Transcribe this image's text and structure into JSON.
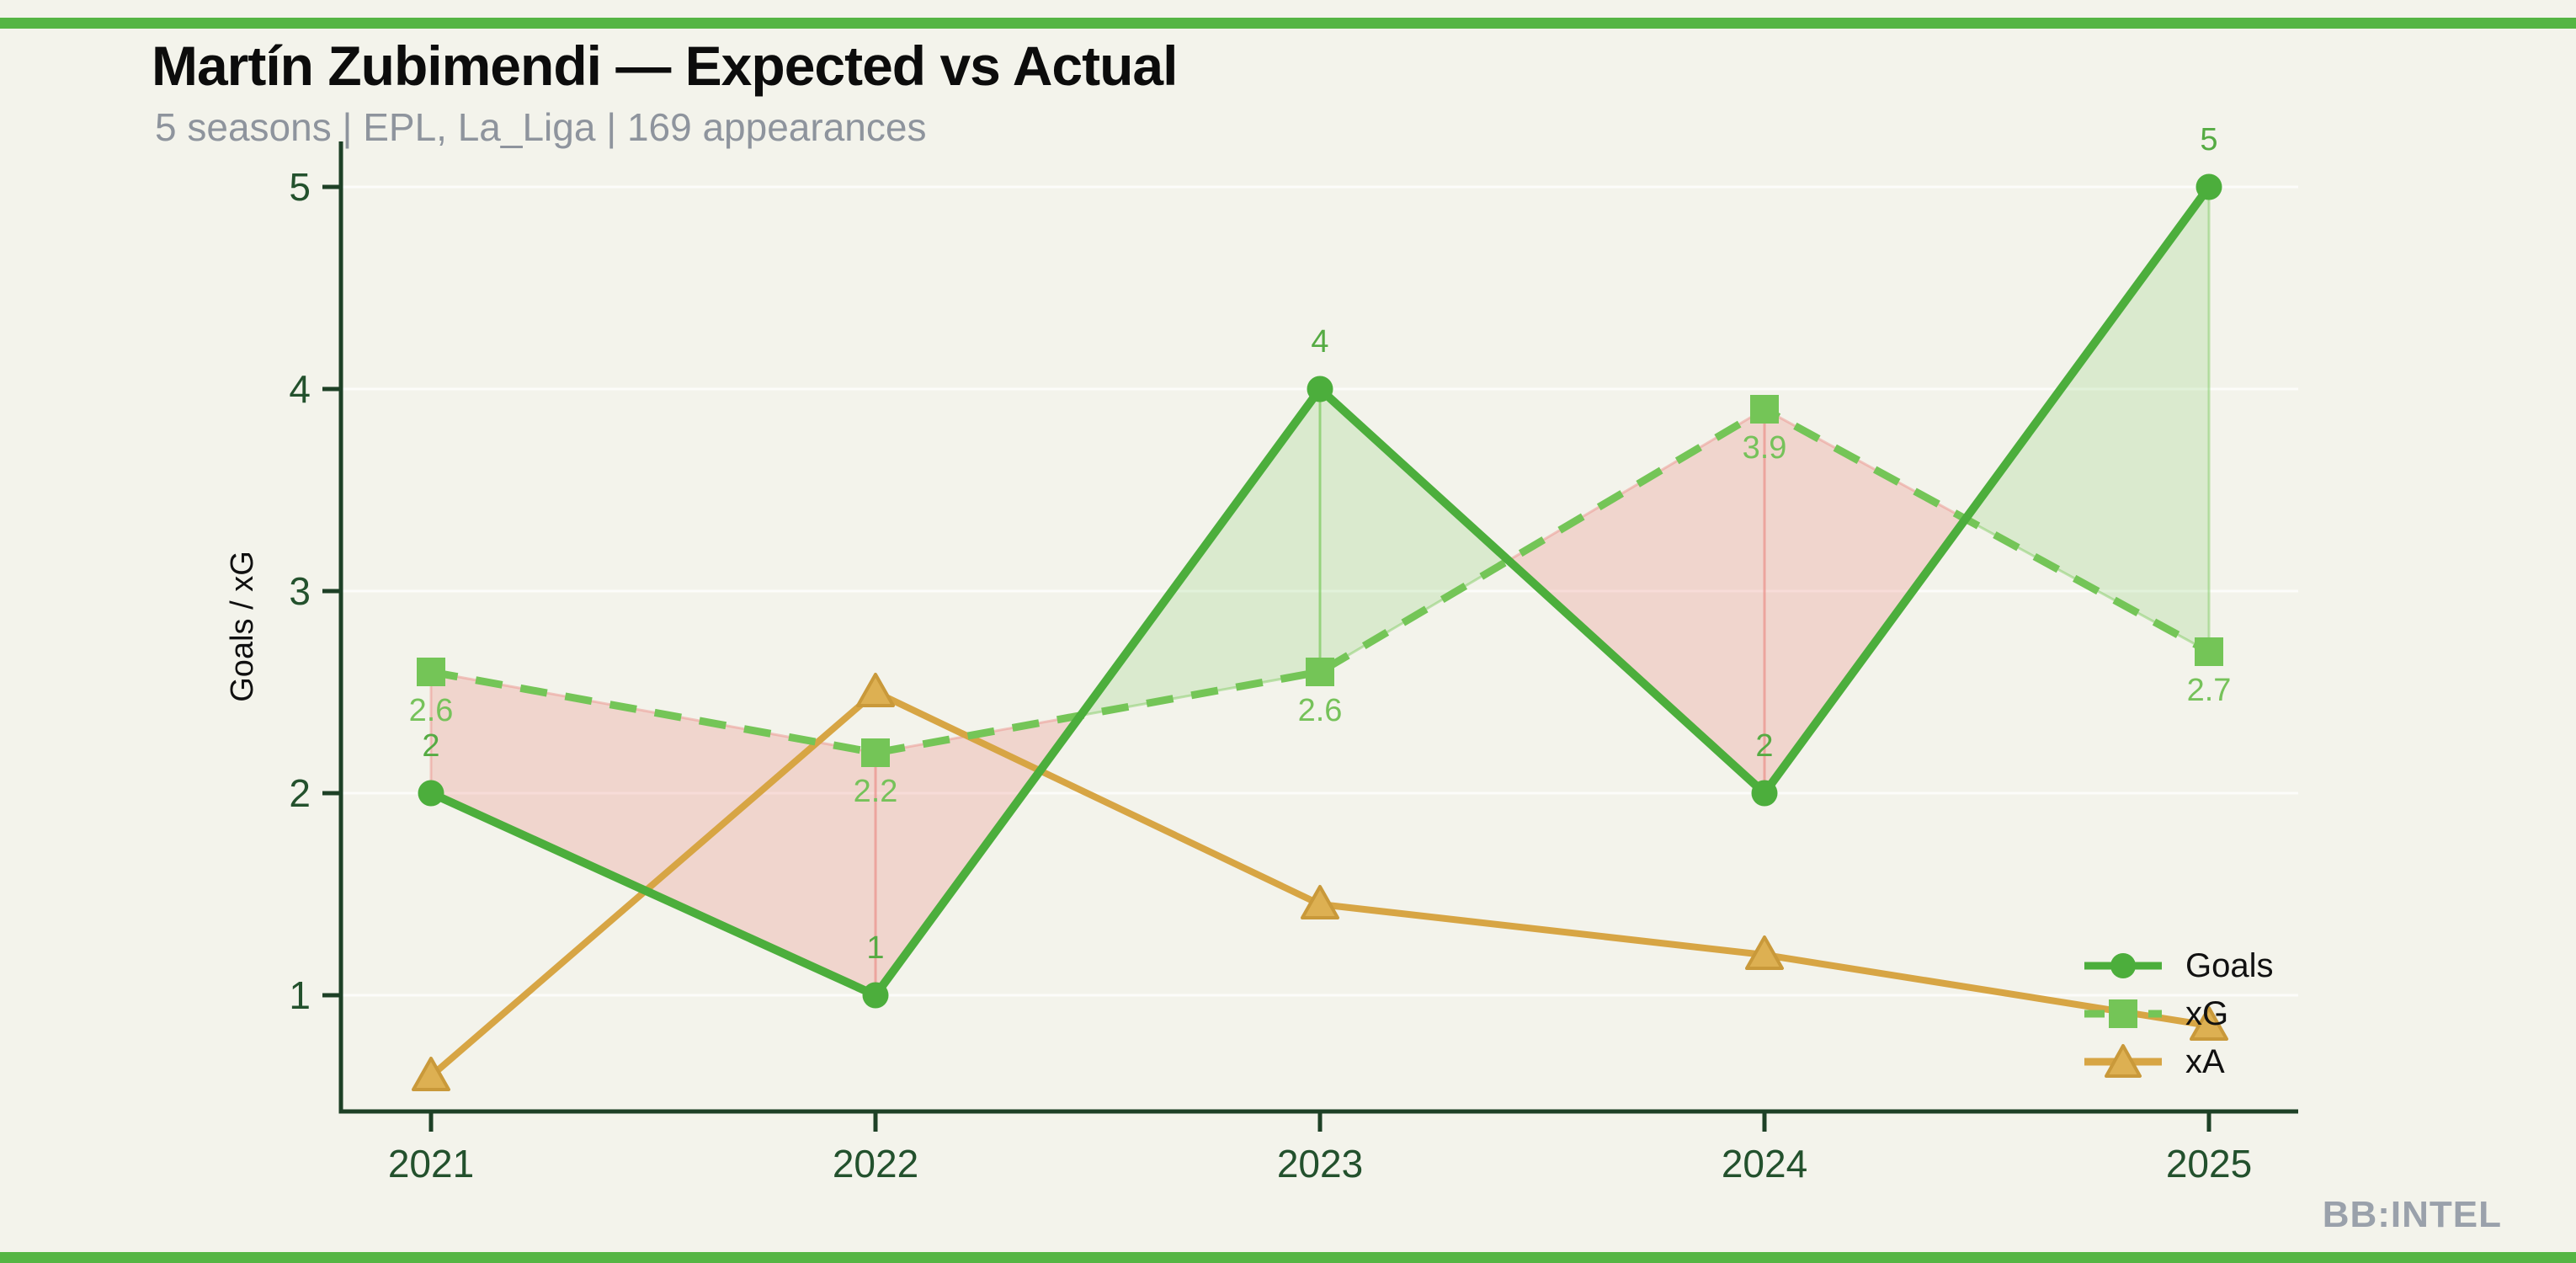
{
  "header": {
    "title": "Martín Zubimendi — Expected vs Actual",
    "subtitle": "5 seasons | EPL, La_Liga | 169 appearances"
  },
  "footer": {
    "watermark": "BB:INTEL"
  },
  "colors": {
    "accent_bar": "#55b544",
    "background": "#f3f3eb",
    "axis": "#1d4026",
    "tick_label": "#23512d",
    "subtitle_gray": "#8e949d",
    "watermark_gray": "#9aa1ab"
  },
  "chart_data": {
    "type": "line",
    "title": "Martín Zubimendi — Expected vs Actual",
    "subtitle": "5 seasons | EPL, La_Liga | 169 appearances",
    "categories": [
      "2021",
      "2022",
      "2023",
      "2024",
      "2025"
    ],
    "x": [
      2021,
      2022,
      2023,
      2024,
      2025
    ],
    "series": [
      {
        "name": "Goals",
        "values": [
          2,
          1,
          4,
          2,
          5
        ],
        "labels": [
          "2",
          "1",
          "4",
          "2",
          "5"
        ],
        "color": "#4cae3c",
        "label_color": "#55ab43",
        "marker": "circle",
        "style": "solid"
      },
      {
        "name": "xG",
        "values": [
          2.6,
          2.2,
          2.6,
          3.9,
          2.7
        ],
        "labels": [
          "2.6",
          "2.2",
          "2.6",
          "3.9",
          "2.7"
        ],
        "color": "#74c557",
        "label_color": "#76c25a",
        "marker": "square",
        "style": "dashed"
      },
      {
        "name": "xA",
        "values": [
          0.6,
          2.5,
          1.45,
          1.2,
          0.85
        ],
        "labels": [],
        "color": "#d7a544",
        "marker_fill": "#ddb052",
        "marker_edge": "#c9993a",
        "marker": "triangle-up",
        "style": "solid"
      }
    ],
    "fill_colors": {
      "above": "rgba(122,202,92,0.20)",
      "above_edge": "rgba(122,202,92,0.45)",
      "below": "rgba(232,126,118,0.26)",
      "below_edge": "rgba(236,150,143,0.50)"
    },
    "fill_rule": "green shading where Goals > xG, pink shading where xG > Goals",
    "ylabel": "Goals / xG",
    "xlabel": "",
    "yticks": [
      1,
      2,
      3,
      4,
      5
    ],
    "ylim": [
      0.42,
      5.23
    ],
    "grid": "faint horizontal lines at integer y values",
    "legend_position": "lower right",
    "legend": [
      "Goals",
      "xG",
      "xA"
    ]
  }
}
